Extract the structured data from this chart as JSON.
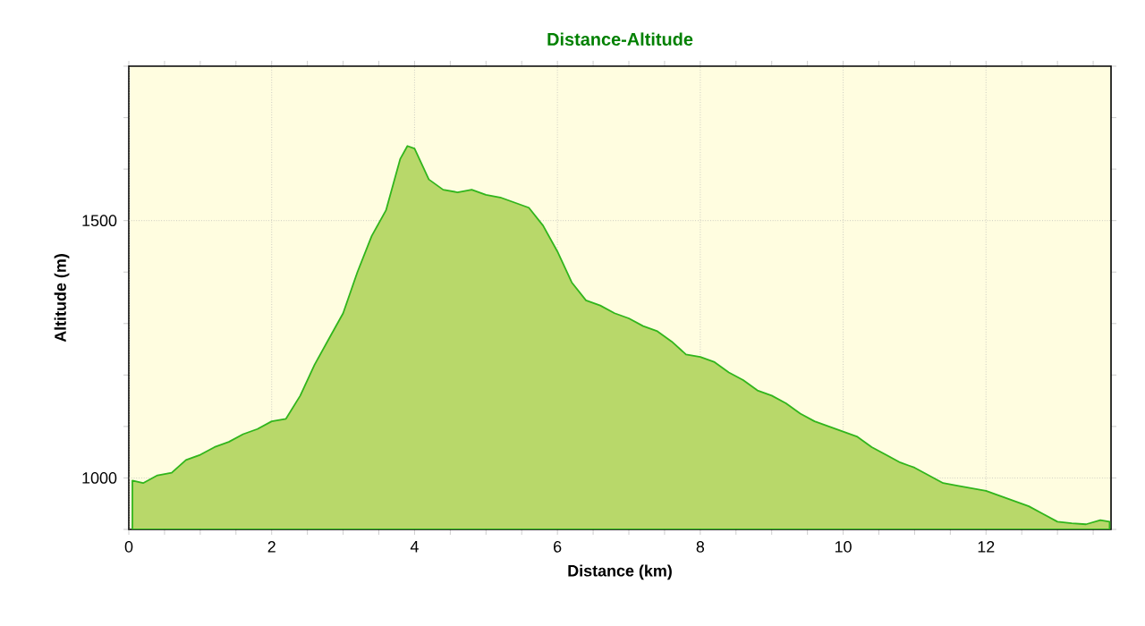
{
  "chart_data": {
    "type": "area",
    "title": "Distance-Altitude",
    "xlabel": "Distance (km)",
    "ylabel": "Altitude (m)",
    "xlim": [
      0,
      13.75
    ],
    "ylim": [
      900,
      1800
    ],
    "xticks": [
      0,
      {
        "value": 0.5,
        "label": null
      },
      {
        "value": 1,
        "label": null
      },
      {
        "value": 1.5,
        "label": null
      },
      2,
      {
        "value": 2.5,
        "label": null
      },
      {
        "value": 3,
        "label": null
      },
      {
        "value": 3.5,
        "label": null
      },
      4,
      {
        "value": 4.5,
        "label": null
      },
      {
        "value": 5,
        "label": null
      },
      {
        "value": 5.5,
        "label": null
      },
      6,
      {
        "value": 6.5,
        "label": null
      },
      {
        "value": 7,
        "label": null
      },
      {
        "value": 7.5,
        "label": null
      },
      8,
      {
        "value": 8.5,
        "label": null
      },
      {
        "value": 9,
        "label": null
      },
      {
        "value": 9.5,
        "label": null
      },
      10,
      {
        "value": 10.5,
        "label": null
      },
      {
        "value": 11,
        "label": null
      },
      {
        "value": 11.5,
        "label": null
      },
      12,
      {
        "value": 12.5,
        "label": null
      },
      {
        "value": 13,
        "label": null
      },
      {
        "value": 13.5,
        "label": null
      }
    ],
    "yticks": [
      {
        "value": 900,
        "label": null
      },
      1000,
      {
        "value": 1100,
        "label": null
      },
      {
        "value": 1200,
        "label": null
      },
      {
        "value": 1300,
        "label": null
      },
      {
        "value": 1400,
        "label": null
      },
      1500,
      {
        "value": 1600,
        "label": null
      },
      {
        "value": 1700,
        "label": null
      },
      {
        "value": 1800,
        "label": null
      }
    ],
    "grid": true,
    "series": [
      {
        "color": "#b8d86a",
        "x": [
          0.05,
          0.2,
          0.4,
          0.6,
          0.8,
          1.0,
          1.2,
          1.4,
          1.6,
          1.8,
          2.0,
          2.2,
          2.4,
          2.6,
          2.8,
          3.0,
          3.2,
          3.4,
          3.6,
          3.8,
          3.9,
          4.0,
          4.2,
          4.4,
          4.6,
          4.8,
          5.0,
          5.2,
          5.4,
          5.6,
          5.8,
          6.0,
          6.2,
          6.4,
          6.6,
          6.8,
          7.0,
          7.2,
          7.4,
          7.6,
          7.8,
          8.0,
          8.2,
          8.4,
          8.6,
          8.8,
          9.0,
          9.2,
          9.4,
          9.6,
          9.8,
          10.0,
          10.2,
          10.4,
          10.6,
          10.8,
          11.0,
          11.2,
          11.4,
          11.6,
          11.8,
          12.0,
          12.2,
          12.4,
          12.6,
          12.8,
          13.0,
          13.2,
          13.4,
          13.6,
          13.73
        ],
        "values": [
          995,
          990,
          1005,
          1010,
          1035,
          1045,
          1060,
          1070,
          1085,
          1095,
          1110,
          1115,
          1160,
          1220,
          1270,
          1320,
          1400,
          1470,
          1520,
          1620,
          1645,
          1640,
          1580,
          1560,
          1555,
          1560,
          1550,
          1545,
          1535,
          1525,
          1490,
          1440,
          1380,
          1345,
          1335,
          1320,
          1310,
          1295,
          1285,
          1265,
          1240,
          1235,
          1225,
          1205,
          1190,
          1170,
          1160,
          1145,
          1125,
          1110,
          1100,
          1090,
          1080,
          1060,
          1045,
          1030,
          1020,
          1005,
          990,
          985,
          980,
          975,
          965,
          955,
          945,
          930,
          915,
          912,
          910,
          918,
          915
        ]
      }
    ]
  }
}
